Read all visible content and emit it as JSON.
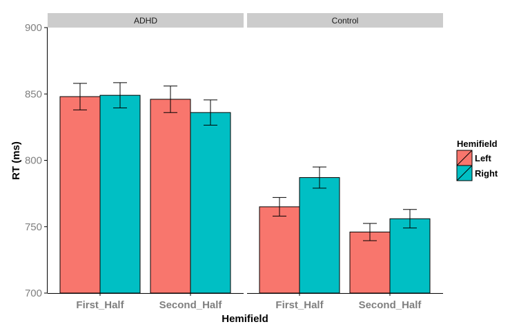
{
  "chart_data": {
    "type": "bar",
    "facet_variable_values": [
      "ADHD",
      "Control"
    ],
    "categories": [
      "First_Half",
      "Second_Half"
    ],
    "xlabel": "Hemifield",
    "ylabel": "RT (ms)",
    "ylim": [
      700,
      900
    ],
    "yticks": [
      700,
      750,
      800,
      850,
      900
    ],
    "grid": false,
    "legend_position": "right",
    "legend_title": "Hemifield",
    "series": [
      {
        "name": "Left",
        "color": "#F8766D"
      },
      {
        "name": "Right",
        "color": "#00BFC4"
      }
    ],
    "panels": [
      {
        "facet": "ADHD",
        "values": {
          "Left": [
            {
              "mean": 848,
              "err": 10
            },
            {
              "mean": 846,
              "err": 10
            }
          ],
          "Right": [
            {
              "mean": 849,
              "err": 9.5
            },
            {
              "mean": 836,
              "err": 9.5
            }
          ]
        }
      },
      {
        "facet": "Control",
        "values": {
          "Left": [
            {
              "mean": 765,
              "err": 7
            },
            {
              "mean": 746,
              "err": 6.5
            }
          ],
          "Right": [
            {
              "mean": 787,
              "err": 8
            },
            {
              "mean": 756,
              "err": 7
            }
          ]
        }
      }
    ]
  }
}
